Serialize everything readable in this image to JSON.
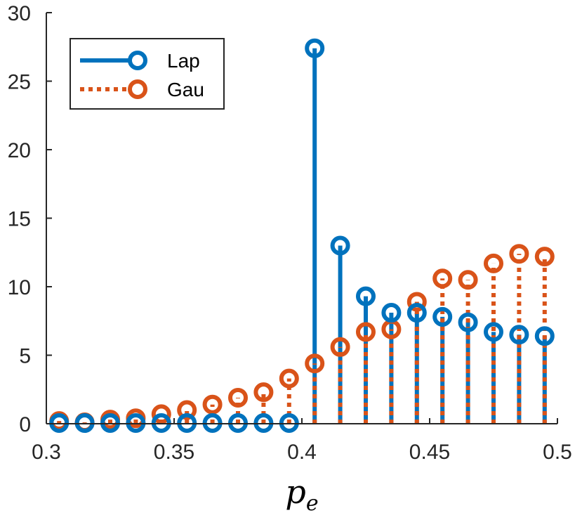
{
  "chart_data": {
    "type": "stem",
    "title": "",
    "xlabel": "p",
    "xlabel_subscript": "e",
    "ylabel": "",
    "xlim": [
      0.3,
      0.5
    ],
    "ylim": [
      0,
      30
    ],
    "xticks": [
      0.3,
      0.35,
      0.4,
      0.45,
      0.5
    ],
    "xtick_labels": [
      "0.3",
      "0.35",
      "0.4",
      "0.45",
      "0.5"
    ],
    "yticks": [
      0,
      5,
      10,
      15,
      20,
      25,
      30
    ],
    "ytick_labels": [
      "0",
      "5",
      "10",
      "15",
      "20",
      "25",
      "30"
    ],
    "grid": false,
    "legend_position": "top-left",
    "x": [
      0.305,
      0.315,
      0.325,
      0.335,
      0.345,
      0.355,
      0.365,
      0.375,
      0.385,
      0.395,
      0.405,
      0.415,
      0.425,
      0.435,
      0.445,
      0.455,
      0.465,
      0.475,
      0.485,
      0.495
    ],
    "series": [
      {
        "name": "Lap",
        "color": "#0072BD",
        "line_style": "solid",
        "marker": "circle",
        "values": [
          0.05,
          0.05,
          0.05,
          0.05,
          0.05,
          0.05,
          0.05,
          0.05,
          0.05,
          0.05,
          27.4,
          13.0,
          9.3,
          8.1,
          8.1,
          7.8,
          7.4,
          6.7,
          6.5,
          6.4
        ]
      },
      {
        "name": "Gau",
        "color": "#D95319",
        "line_style": "dotted",
        "marker": "circle",
        "values": [
          0.2,
          0.1,
          0.3,
          0.4,
          0.7,
          1.0,
          1.4,
          1.9,
          2.3,
          3.3,
          4.4,
          5.6,
          6.7,
          6.9,
          8.9,
          10.6,
          10.5,
          11.7,
          12.4,
          12.2
        ]
      }
    ]
  }
}
